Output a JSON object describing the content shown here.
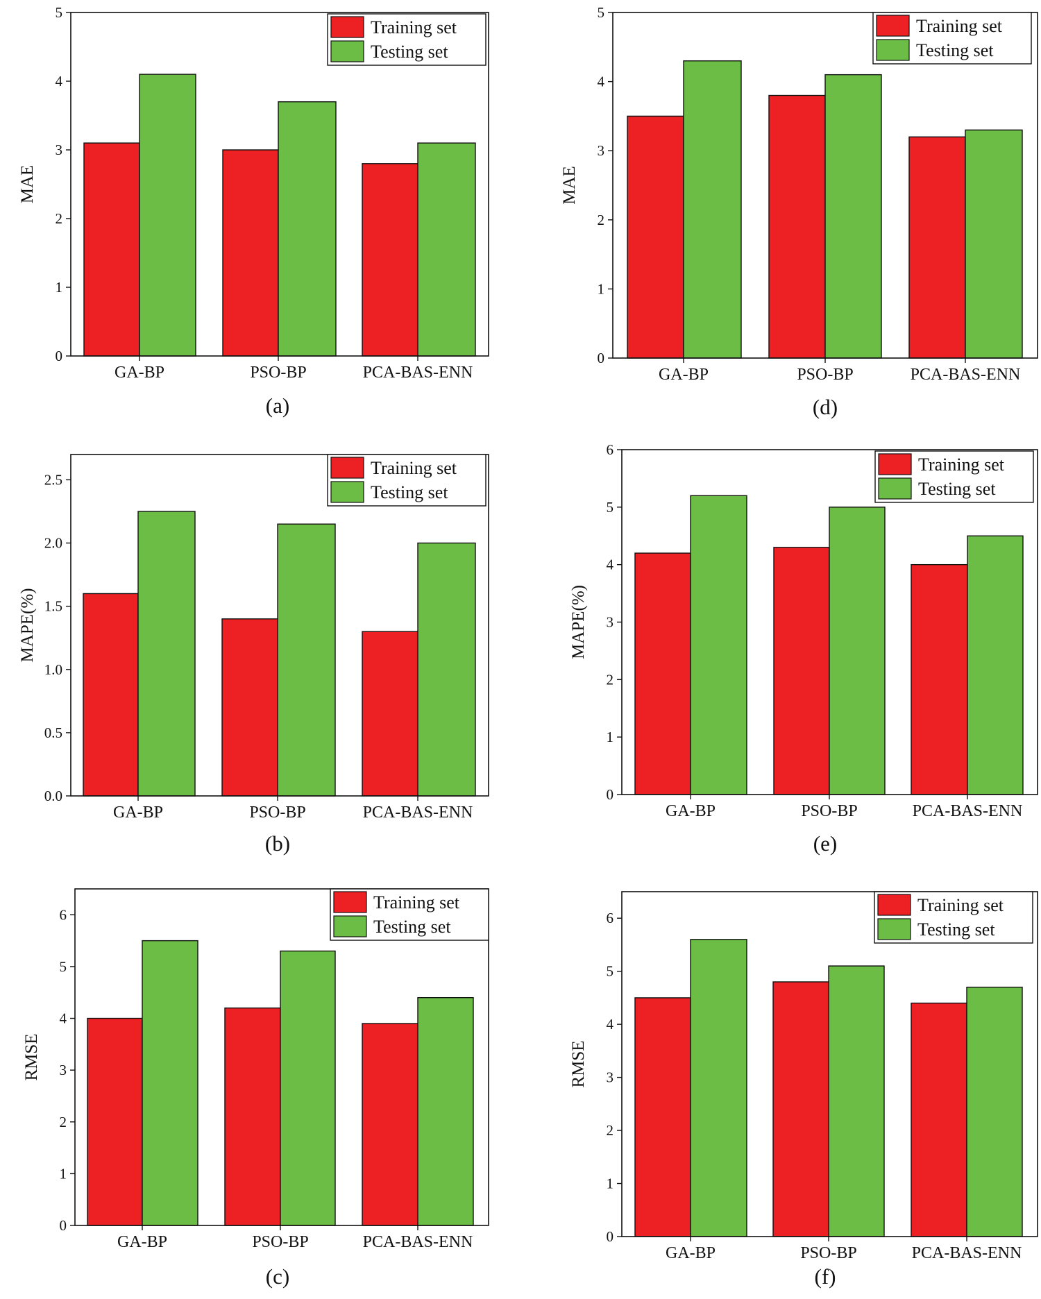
{
  "legend": {
    "training_label": "Training set",
    "testing_label": "Testing set"
  },
  "colors": {
    "training": "#ed2024",
    "testing": "#6cbd45"
  },
  "chart_data": [
    {
      "id": "a",
      "type": "bar",
      "title": "",
      "panel_label": "(a)",
      "xlabel": "",
      "ylabel": "MAE",
      "categories": [
        "GA-BP",
        "PSO-BP",
        "PCA-BAS-ENN"
      ],
      "series": [
        {
          "name": "Training set",
          "values": [
            3.1,
            3.0,
            2.8
          ]
        },
        {
          "name": "Testing set",
          "values": [
            4.1,
            3.7,
            3.1
          ]
        }
      ],
      "ylim": [
        0,
        5
      ],
      "yticks": [
        0,
        1,
        2,
        3,
        4,
        5
      ],
      "ytick_labels": [
        "0",
        "1",
        "2",
        "3",
        "4",
        "5"
      ],
      "legend_position": "top-right",
      "grid": false
    },
    {
      "id": "d",
      "type": "bar",
      "title": "",
      "panel_label": "(d)",
      "xlabel": "",
      "ylabel": "MAE",
      "categories": [
        "GA-BP",
        "PSO-BP",
        "PCA-BAS-ENN"
      ],
      "series": [
        {
          "name": "Training set",
          "values": [
            3.5,
            3.8,
            3.2
          ]
        },
        {
          "name": "Testing set",
          "values": [
            4.3,
            4.1,
            3.3
          ]
        }
      ],
      "ylim": [
        0,
        5
      ],
      "yticks": [
        0,
        1,
        2,
        3,
        4,
        5
      ],
      "ytick_labels": [
        "0",
        "1",
        "2",
        "3",
        "4",
        "5"
      ],
      "legend_position": "top-right",
      "grid": false
    },
    {
      "id": "b",
      "type": "bar",
      "title": "",
      "panel_label": "(b)",
      "xlabel": "",
      "ylabel": "MAPE(%)",
      "categories": [
        "GA-BP",
        "PSO-BP",
        "PCA-BAS-ENN"
      ],
      "series": [
        {
          "name": "Training set",
          "values": [
            1.6,
            1.4,
            1.3
          ]
        },
        {
          "name": "Testing set",
          "values": [
            2.25,
            2.15,
            2.0
          ]
        }
      ],
      "ylim": [
        0,
        2.7
      ],
      "yticks": [
        0,
        0.5,
        1.0,
        1.5,
        2.0,
        2.5
      ],
      "ytick_labels": [
        "0.0",
        "0.5",
        "1.0",
        "1.5",
        "2.0",
        "2.5"
      ],
      "legend_position": "top-right",
      "grid": false
    },
    {
      "id": "e",
      "type": "bar",
      "title": "",
      "panel_label": "(e)",
      "xlabel": "",
      "ylabel": "MAPE(%)",
      "categories": [
        "GA-BP",
        "PSO-BP",
        "PCA-BAS-ENN"
      ],
      "series": [
        {
          "name": "Training set",
          "values": [
            4.2,
            4.3,
            4.0
          ]
        },
        {
          "name": "Testing set",
          "values": [
            5.2,
            5.0,
            4.5
          ]
        }
      ],
      "ylim": [
        0,
        6
      ],
      "yticks": [
        0,
        1,
        2,
        3,
        4,
        5,
        6
      ],
      "ytick_labels": [
        "0",
        "1",
        "2",
        "3",
        "4",
        "5",
        "6"
      ],
      "legend_position": "top-right",
      "grid": false
    },
    {
      "id": "c",
      "type": "bar",
      "title": "",
      "panel_label": "(c)",
      "xlabel": "",
      "ylabel": "RMSE",
      "categories": [
        "GA-BP",
        "PSO-BP",
        "PCA-BAS-ENN"
      ],
      "series": [
        {
          "name": "Training set",
          "values": [
            4.0,
            4.2,
            3.9
          ]
        },
        {
          "name": "Testing set",
          "values": [
            5.5,
            5.3,
            4.4
          ]
        }
      ],
      "ylim": [
        0,
        6.5
      ],
      "yticks": [
        0,
        1,
        2,
        3,
        4,
        5,
        6
      ],
      "ytick_labels": [
        "0",
        "1",
        "2",
        "3",
        "4",
        "5",
        "6"
      ],
      "legend_position": "top-right",
      "grid": false
    },
    {
      "id": "f",
      "type": "bar",
      "title": "",
      "panel_label": "(f)",
      "xlabel": "",
      "ylabel": "RMSE",
      "categories": [
        "GA-BP",
        "PSO-BP",
        "PCA-BAS-ENN"
      ],
      "series": [
        {
          "name": "Training set",
          "values": [
            4.5,
            4.8,
            4.4
          ]
        },
        {
          "name": "Testing set",
          "values": [
            5.6,
            5.1,
            4.7
          ]
        }
      ],
      "ylim": [
        0,
        6.5
      ],
      "yticks": [
        0,
        1,
        2,
        3,
        4,
        5,
        6
      ],
      "ytick_labels": [
        "0",
        "1",
        "2",
        "3",
        "4",
        "5",
        "6"
      ],
      "legend_position": "top-right",
      "grid": false
    }
  ]
}
